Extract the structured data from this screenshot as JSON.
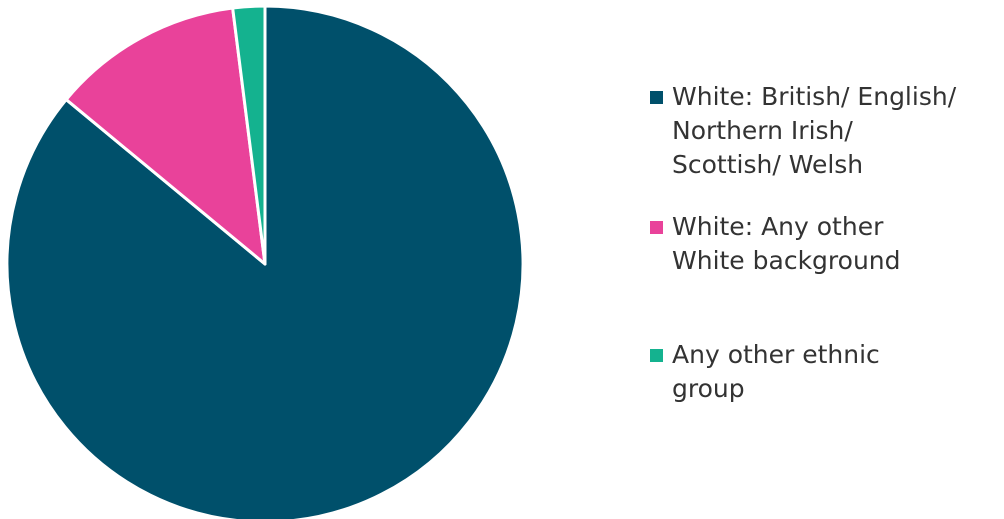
{
  "chart_data": {
    "type": "pie",
    "title": "",
    "legend_position": "right",
    "series": [
      {
        "name": "",
        "slices": [
          {
            "label": "White: British/ English/ Northern Irish/ Scottish/ Welsh",
            "display_label": "White: British/ English/\nNorthern Irish/\nScottish/ Welsh",
            "value": 86,
            "color": "#00506b"
          },
          {
            "label": "White: Any other White background",
            "display_label": "White: Any other\nWhite background",
            "value": 12,
            "color": "#e9429a"
          },
          {
            "label": "Any other ethnic group",
            "display_label": "Any other ethnic\ngroup",
            "value": 2,
            "color": "#14b28f"
          }
        ]
      }
    ]
  }
}
